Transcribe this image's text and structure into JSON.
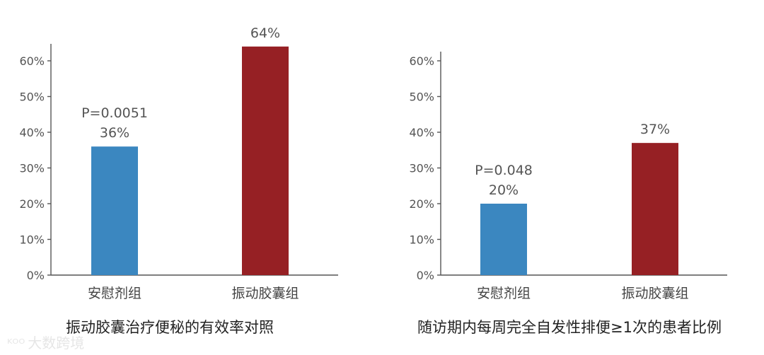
{
  "chart_data": [
    {
      "type": "bar",
      "title": "振动胶囊治疗便秘的有效率对照",
      "categories": [
        "安慰剂组",
        "振动胶囊组"
      ],
      "values": [
        36,
        64
      ],
      "value_labels": [
        "36%",
        "64%"
      ],
      "colors": [
        "#3b87c0",
        "#962024"
      ],
      "p_value_text": "P=0.0051",
      "ylim": [
        0,
        65
      ],
      "yticks": [
        "0%",
        "10%",
        "20%",
        "30%",
        "40%",
        "50%",
        "60%"
      ],
      "grid": false
    },
    {
      "type": "bar",
      "title": "随访期内每周完全自发性排便≥1次的患者比例",
      "categories": [
        "安慰剂组",
        "振动胶囊组"
      ],
      "values": [
        20,
        37
      ],
      "value_labels": [
        "20%",
        "37%"
      ],
      "colors": [
        "#3b87c0",
        "#962024"
      ],
      "p_value_text": "P=0.048",
      "ylim": [
        0,
        65
      ],
      "yticks": [
        "0%",
        "10%",
        "20%",
        "30%",
        "40%",
        "50%",
        "60%"
      ],
      "grid": false
    }
  ],
  "watermark": {
    "icon": "logo-mark",
    "text": "大数跨境"
  }
}
